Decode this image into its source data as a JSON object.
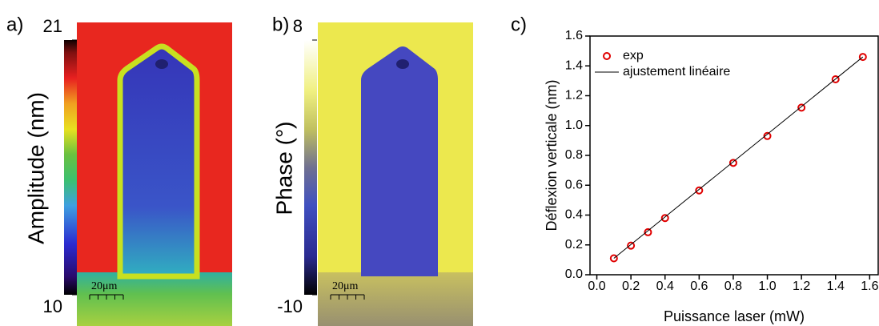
{
  "chart_data": [
    {
      "type": "heatmap",
      "panel_label": "a)",
      "colorbar_label": "Amplitude (nm)",
      "clim": [
        10,
        21
      ],
      "cticks": [
        10,
        21
      ],
      "scale_bar": "20μm"
    },
    {
      "type": "heatmap",
      "panel_label": "b)",
      "colorbar_label": "Phase (°)",
      "clim": [
        -10,
        8
      ],
      "cticks": [
        -10,
        8
      ],
      "scale_bar": "20μm"
    },
    {
      "type": "scatter",
      "panel_label": "c)",
      "x_label": "Puissance laser (mW)",
      "y_label": "Déflexion verticale (nm)",
      "xlim": [
        -0.04,
        1.65
      ],
      "ylim": [
        0,
        1.6
      ],
      "xticks": [
        {
          "value": 0,
          "label": "0.0"
        },
        0.2,
        0.4,
        0.6,
        0.8,
        {
          "value": 1,
          "label": "1.0"
        },
        1.2,
        1.4,
        1.6
      ],
      "yticks": [
        {
          "value": 0,
          "label": "0.0"
        },
        0.2,
        0.4,
        0.6,
        0.8,
        {
          "value": 1,
          "label": "1.0"
        },
        1.2,
        1.4,
        1.6
      ],
      "legend": "upper left",
      "series": [
        {
          "name": "exp",
          "color": "#e00000",
          "style": "marker",
          "x": [
            0.1,
            0.2,
            0.3,
            0.4,
            0.6,
            0.8,
            1.0,
            1.2,
            1.4,
            1.56
          ],
          "values": [
            0.11,
            0.195,
            0.285,
            0.38,
            0.565,
            0.75,
            0.93,
            1.12,
            1.31,
            1.46
          ]
        },
        {
          "name": "ajustement linéaire",
          "color": "#000000",
          "style": "line",
          "x": [
            0.1,
            1.56
          ],
          "values": [
            0.11,
            1.46
          ]
        }
      ]
    }
  ]
}
